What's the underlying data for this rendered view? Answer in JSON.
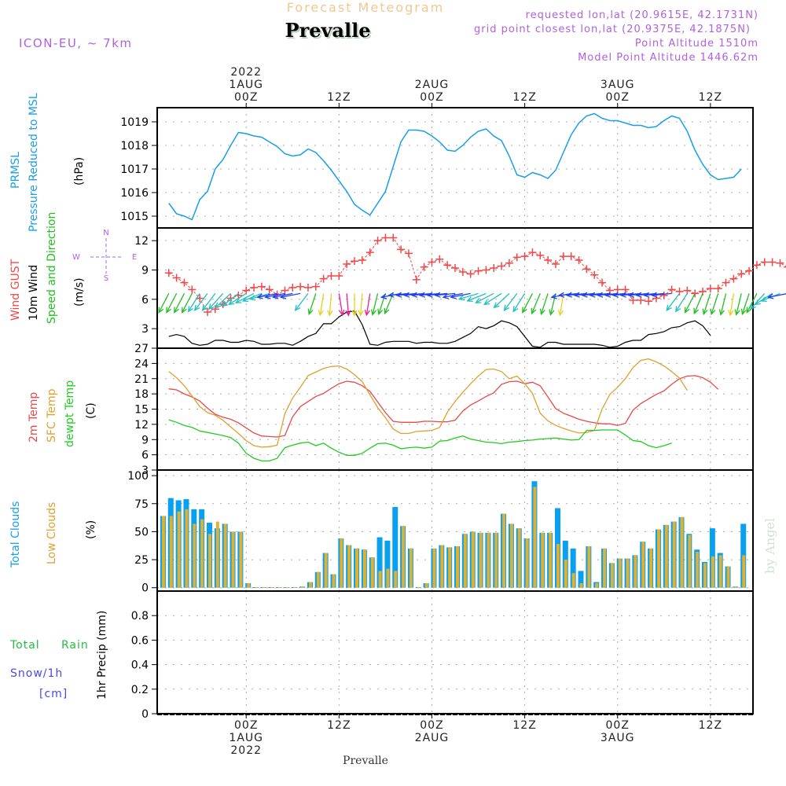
{
  "header": {
    "top_title": "Forecast Meteogram",
    "location": "Prevalle",
    "model": "ICON-EU, ~ 7km",
    "requested": "requested lon,lat (20.9615E, 42.1731N)",
    "grid_point": "grid point closest lon,lat (20.9375E, 42.1875N)",
    "point_altitude": "Point Altitude 1510m",
    "model_altitude": "Model Point Altitude 1446.62m",
    "watermark": "by Angel",
    "footer_location": "Prevalle"
  },
  "colors": {
    "pressure": "#1a9ee8",
    "gust": "#f04848",
    "wind": "#000000",
    "wind_dir_label": "#20c020",
    "temp2m": "#e84848",
    "sfc_temp": "#e0a030",
    "dewpt": "#20cc20",
    "total_clouds": "#0aa0f0",
    "low_clouds": "#e0b030",
    "meta_purple": "#b060e0",
    "title_orange": "#f0c890",
    "rain": "#20c040",
    "snow": "#4848f0"
  },
  "chart_data": [
    {
      "type": "line",
      "name": "pressure-panel",
      "labels": [
        "PRMSL",
        "Pressure Reduced to MSL"
      ],
      "ylabel": "(hPa)",
      "ylim": [
        1014.5,
        1019.6
      ],
      "yticks": [
        1015,
        1016,
        1017,
        1018,
        1019
      ],
      "x_hours_start": -10,
      "x_hours_step": 1,
      "series": [
        {
          "name": "PRMSL",
          "values": [
            1015.55,
            1015.1,
            1015.0,
            1014.85,
            1015.7,
            1016.05,
            1017.0,
            1017.4,
            1018.0,
            1018.55,
            1018.5,
            1018.4,
            1018.35,
            1018.15,
            1017.95,
            1017.65,
            1017.55,
            1017.6,
            1017.85,
            1017.7,
            1017.35,
            1016.95,
            1016.5,
            1016.05,
            1015.5,
            1015.25,
            1015.05,
            1015.55,
            1016.05,
            1017.1,
            1018.15,
            1018.65,
            1018.65,
            1018.6,
            1018.4,
            1018.15,
            1017.8,
            1017.75,
            1018.0,
            1018.35,
            1018.6,
            1018.7,
            1018.4,
            1018.2,
            1017.55,
            1016.75,
            1016.65,
            1016.85,
            1016.75,
            1016.6,
            1016.95,
            1017.7,
            1018.45,
            1018.95,
            1019.25,
            1019.35,
            1019.15,
            1019.05,
            1019.05,
            1018.95,
            1018.85,
            1018.85,
            1018.75,
            1018.8,
            1019.05,
            1019.25,
            1019.15,
            1018.6,
            1017.8,
            1017.2,
            1016.75,
            1016.55,
            1016.6,
            1016.65,
            1017.0
          ]
        }
      ]
    },
    {
      "type": "line",
      "name": "wind-panel",
      "labels": [
        "Wind GUST",
        "10m Wind",
        "Speed and Direction"
      ],
      "ylabel": "(m/s)",
      "compass": {
        "n": "N",
        "s": "S",
        "w": "W",
        "e": "E"
      },
      "ylim": [
        1,
        13.3
      ],
      "yticks": [
        3,
        6,
        9,
        12
      ],
      "x_hours_start": -10,
      "x_hours_step": 1,
      "series": [
        {
          "name": "Wind GUST",
          "values": [
            8.7,
            8.2,
            7.7,
            7.0,
            6.1,
            4.7,
            5.0,
            5.5,
            6.1,
            6.4,
            6.9,
            7.2,
            7.3,
            7.0,
            6.5,
            6.9,
            7.2,
            7.3,
            7.2,
            7.3,
            8.1,
            8.4,
            8.4,
            9.6,
            9.9,
            10.0,
            10.8,
            12.0,
            12.3,
            12.3,
            11.1,
            10.7,
            8.0,
            9.3,
            9.8,
            10.1,
            9.5,
            9.2,
            8.8,
            8.6,
            8.9,
            9.0,
            9.2,
            9.4,
            9.7,
            10.3,
            10.4,
            10.8,
            10.5,
            10.0,
            9.6,
            10.4,
            10.4,
            10.0,
            9.1,
            8.5,
            7.7,
            6.9,
            7.0,
            7.0,
            5.9,
            5.9,
            5.8,
            6.1,
            6.4,
            7.0,
            6.8,
            6.9,
            6.6,
            6.8,
            7.1,
            7.1,
            7.7,
            8.1,
            8.6,
            8.9,
            9.5,
            9.8,
            9.8,
            9.7,
            9.3
          ]
        },
        {
          "name": "10m Wind",
          "values": [
            2.2,
            2.4,
            2.2,
            1.5,
            1.3,
            1.4,
            1.8,
            1.8,
            1.6,
            1.6,
            1.8,
            1.7,
            1.4,
            1.4,
            1.5,
            1.5,
            1.3,
            1.7,
            2.2,
            2.5,
            3.5,
            3.5,
            4.2,
            4.7,
            4.8,
            3.4,
            1.4,
            1.3,
            1.6,
            1.7,
            1.7,
            1.7,
            1.5,
            1.6,
            1.6,
            1.5,
            1.5,
            1.7,
            2.1,
            2.5,
            3.2,
            3.0,
            3.3,
            3.8,
            3.6,
            3.2,
            2.2,
            1.2,
            1.1,
            1.6,
            1.6,
            1.4,
            1.4,
            1.4,
            1.4,
            1.4,
            1.3,
            1.1,
            1.2,
            1.6,
            1.8,
            1.8,
            2.4,
            2.5,
            2.7,
            3.1,
            3.2,
            3.6,
            3.8,
            3.3,
            2.3
          ]
        },
        {
          "name": "Wind direction (deg from)",
          "values": [
            30,
            30,
            30,
            30,
            35,
            40,
            40,
            45,
            50,
            55,
            60,
            65,
            70,
            75,
            80,
            80,
            80,
            80,
            40,
            20,
            10,
            5,
            350,
            355,
            0,
            5,
            10,
            15,
            20,
            25,
            80,
            85,
            85,
            85,
            85,
            85,
            85,
            85,
            80,
            80,
            75,
            70,
            65,
            60,
            50,
            40,
            35,
            30,
            25,
            20,
            15,
            10,
            80,
            85,
            85,
            85,
            85,
            85,
            85,
            85,
            85,
            85,
            85,
            85,
            85,
            85,
            40,
            35,
            30,
            25,
            20,
            20,
            15,
            10,
            15,
            20,
            30,
            45,
            60,
            70,
            80
          ]
        }
      ]
    },
    {
      "type": "line",
      "name": "temperature-panel",
      "labels": [
        "2m Temp",
        "SFC Temp",
        "dewpt Temp"
      ],
      "ylabel": "(C)",
      "ylim": [
        3,
        27
      ],
      "yticks": [
        3,
        6,
        9,
        12,
        15,
        18,
        21,
        24,
        27
      ],
      "x_hours_start": -10,
      "x_hours_step": 1,
      "series": [
        {
          "name": "2m Temp",
          "values": [
            19.0,
            18.8,
            18.0,
            17.4,
            16.6,
            15.2,
            14.0,
            13.4,
            13.0,
            12.3,
            11.3,
            10.3,
            9.7,
            9.6,
            9.5,
            9.8,
            13.5,
            15.5,
            16.5,
            17.5,
            18.1,
            19.1,
            20.0,
            20.5,
            20.3,
            19.6,
            18.5,
            16.4,
            14.3,
            12.6,
            12.4,
            12.4,
            12.4,
            12.6,
            12.6,
            12.5,
            12.5,
            12.8,
            14.6,
            15.8,
            16.6,
            17.5,
            18.2,
            19.9,
            20.4,
            20.5,
            20.0,
            20.3,
            19.6,
            17.4,
            15.1,
            14.2,
            13.6,
            13.0,
            12.6,
            12.3,
            12.1,
            12.1,
            11.8,
            12.2,
            14.8,
            16.1,
            17.0,
            17.9,
            18.6,
            19.9,
            21.0,
            21.5,
            21.6,
            21.2,
            20.3,
            18.9
          ]
        },
        {
          "name": "SFC Temp",
          "values": [
            22.4,
            21.2,
            19.6,
            17.6,
            15.5,
            14.3,
            13.8,
            12.8,
            11.5,
            10.2,
            8.8,
            7.8,
            7.5,
            7.6,
            7.9,
            14.1,
            17.2,
            19.3,
            21.6,
            22.3,
            23.0,
            23.4,
            23.5,
            22.9,
            21.8,
            20.4,
            17.8,
            15.3,
            13.3,
            11.1,
            10.2,
            10.2,
            10.6,
            10.7,
            10.8,
            11.4,
            14.4,
            16.5,
            18.3,
            20.0,
            21.5,
            22.8,
            22.9,
            22.4,
            21.0,
            21.5,
            20.0,
            18.1,
            14.2,
            12.7,
            11.8,
            11.2,
            10.7,
            10.3,
            10.4,
            10.8,
            15.0,
            17.9,
            19.3,
            21.0,
            23.2,
            24.6,
            24.9,
            24.3,
            23.5,
            22.4,
            21.1,
            18.7
          ]
        },
        {
          "name": "dewpt Temp",
          "values": [
            12.9,
            12.4,
            11.8,
            11.4,
            10.7,
            10.4,
            10.1,
            9.8,
            9.4,
            8.3,
            6.3,
            5.3,
            4.8,
            4.8,
            5.3,
            7.4,
            7.9,
            8.3,
            8.5,
            7.8,
            8.3,
            7.3,
            6.5,
            5.9,
            5.9,
            6.3,
            7.3,
            8.2,
            8.3,
            7.9,
            7.2,
            7.4,
            7.5,
            7.3,
            7.5,
            8.7,
            8.8,
            9.3,
            9.7,
            9.1,
            8.8,
            8.5,
            8.4,
            8.2,
            8.5,
            8.6,
            8.8,
            8.9,
            9.1,
            9.2,
            9.3,
            9.1,
            8.9,
            9.0,
            10.8,
            10.8,
            10.9,
            10.9,
            10.9,
            9.9,
            8.8,
            8.6,
            7.8,
            7.4,
            7.8,
            8.3
          ]
        }
      ]
    },
    {
      "type": "bar",
      "name": "clouds-panel",
      "labels": [
        "Total Clouds",
        "Low Clouds"
      ],
      "ylabel": "(%)",
      "ylim": [
        -3,
        105
      ],
      "yticks": [
        0,
        25,
        50,
        75,
        100
      ],
      "x_hours_start": -11,
      "x_hours_step": 1,
      "series": [
        {
          "name": "Total Clouds",
          "values": [
            64,
            80,
            78,
            79,
            70,
            70,
            58,
            53,
            57,
            50,
            50,
            4,
            0,
            0,
            0,
            0,
            0,
            0,
            1,
            5,
            14,
            31,
            12,
            44,
            38,
            35,
            34,
            27,
            45,
            42,
            72,
            55,
            35,
            0,
            4,
            35,
            38,
            36,
            37,
            48,
            50,
            49,
            49,
            49,
            66,
            57,
            53,
            44,
            95,
            49,
            49,
            71,
            42,
            35,
            15,
            37,
            5,
            35,
            22,
            26,
            26,
            29,
            41,
            35,
            52,
            56,
            59,
            63,
            48,
            34,
            23,
            53,
            31,
            19,
            1,
            57
          ]
        },
        {
          "name": "Low Clouds",
          "values": [
            64,
            64,
            68,
            70,
            57,
            61,
            48,
            59,
            57,
            50,
            50,
            4,
            0,
            0,
            0,
            0,
            0,
            0,
            1,
            5,
            14,
            31,
            12,
            44,
            38,
            35,
            34,
            27,
            15,
            17,
            15,
            55,
            35,
            0,
            4,
            35,
            38,
            36,
            37,
            48,
            50,
            49,
            49,
            49,
            66,
            57,
            53,
            44,
            90,
            49,
            49,
            39,
            25,
            13,
            4,
            37,
            4,
            35,
            22,
            26,
            26,
            29,
            41,
            35,
            52,
            56,
            59,
            63,
            47,
            32,
            22,
            28,
            29,
            19,
            1,
            29
          ]
        }
      ]
    },
    {
      "type": "line",
      "name": "precip-panel",
      "labels": [
        "Total",
        "Rain",
        "Snow/1h",
        "[cm]"
      ],
      "ylabel": "1hr Precip (mm)",
      "ylim": [
        0,
        1
      ],
      "yticks": [
        "0",
        "0.2",
        "0.4",
        "0.6",
        "0.8"
      ],
      "series": [
        {
          "name": "Total Rain",
          "values": []
        }
      ]
    }
  ],
  "time_axis": {
    "top": [
      {
        "hour": 0,
        "lines": [
          "2022",
          "1AUG",
          "00Z"
        ]
      },
      {
        "hour": 12,
        "lines": [
          "12Z"
        ]
      },
      {
        "hour": 24,
        "lines": [
          "2AUG",
          "00Z"
        ]
      },
      {
        "hour": 36,
        "lines": [
          "12Z"
        ]
      },
      {
        "hour": 48,
        "lines": [
          "3AUG",
          "00Z"
        ]
      },
      {
        "hour": 60,
        "lines": [
          "12Z"
        ]
      }
    ],
    "bottom": [
      {
        "hour": 0,
        "lines": [
          "00Z",
          "1AUG",
          "2022"
        ]
      },
      {
        "hour": 12,
        "lines": [
          "12Z"
        ]
      },
      {
        "hour": 24,
        "lines": [
          "00Z",
          "2AUG"
        ]
      },
      {
        "hour": 36,
        "lines": [
          "12Z"
        ]
      },
      {
        "hour": 48,
        "lines": [
          "00Z",
          "3AUG"
        ]
      },
      {
        "hour": 60,
        "lines": [
          "12Z"
        ]
      }
    ]
  }
}
